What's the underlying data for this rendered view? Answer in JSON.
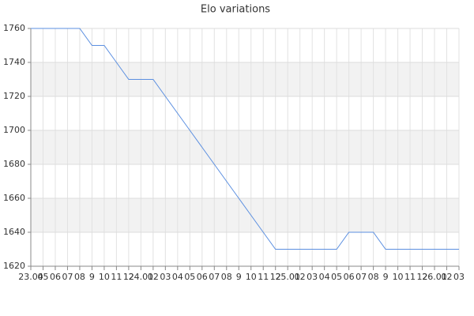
{
  "chart_data": {
    "type": "line",
    "title": "Elo variations",
    "categories": [
      "23.04",
      "05",
      "06",
      "07",
      "08",
      "9",
      "10",
      "11",
      "12",
      "24.01",
      "02",
      "03",
      "04",
      "05",
      "06",
      "07",
      "08",
      "9",
      "10",
      "11",
      "12",
      "25.01",
      "02",
      "03",
      "04",
      "05",
      "06",
      "07",
      "08",
      "9",
      "10",
      "11",
      "12",
      "26.01",
      "02",
      "03"
    ],
    "values": [
      1760,
      1760,
      1760,
      1760,
      1760,
      1750,
      1750,
      1740,
      1730,
      1730,
      1730,
      1720,
      1710,
      1700,
      1690,
      1680,
      1670,
      1660,
      1650,
      1640,
      1630,
      1630,
      1630,
      1630,
      1630,
      1630,
      1640,
      1640,
      1640,
      1630,
      1630,
      1630,
      1630,
      1630,
      1630,
      1630
    ],
    "color": "#5b8fe0",
    "ylim": [
      1620,
      1760
    ],
    "yticks": [
      1620,
      1640,
      1660,
      1680,
      1700,
      1720,
      1740,
      1760
    ],
    "grid": true
  }
}
